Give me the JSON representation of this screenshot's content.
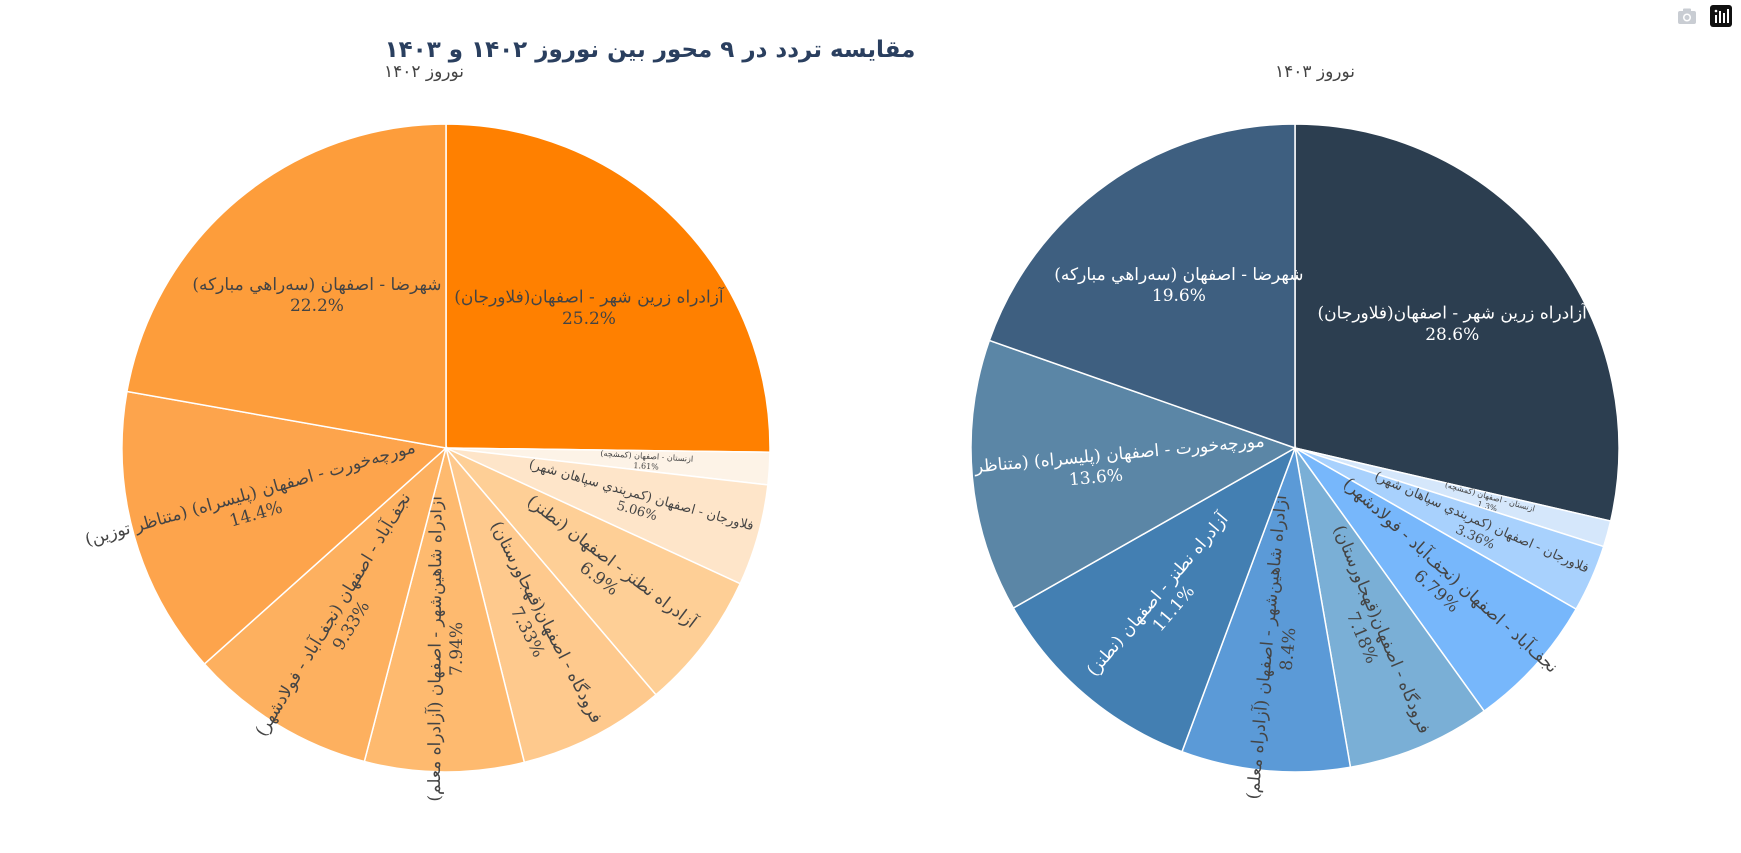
{
  "toolbar": {
    "camera_icon": "camera-icon",
    "plotly_icon": "plotly-logo-icon"
  },
  "chart_data": {
    "type": "pie",
    "title": "مقایسه تردد در ۹ محور بین نوروز ۱۴۰۲ و ۱۴۰۳",
    "subplots": [
      {
        "name": "نوروز ۱۴۰۲",
        "slices": [
          {
            "label": "آزادراه زرین شهر - اصفهان(فلاورجان)",
            "percent": 25.2,
            "text": "25.2%",
            "color": "#ff8000"
          },
          {
            "label": "ازنستان - اصفهان (کمشچه)",
            "percent": 1.61,
            "text": "1.61%",
            "color": "#fdf3e7"
          },
          {
            "label": "فلاورجان - اصفهان (کمربندي سپاهان شهر)",
            "percent": 5.06,
            "text": "5.06%",
            "color": "#fee5c9"
          },
          {
            "label": "آزادراه نطنز - اصفهان (نطنز)",
            "percent": 6.9,
            "text": "6.9%",
            "color": "#fecf96"
          },
          {
            "label": "فرودگاه - اصفهان(قهجاورستان)",
            "percent": 7.33,
            "text": "7.33%",
            "color": "#fec98d"
          },
          {
            "label": "آزادراه شاهین‌شهر - اصفهان (آزادراه معلم)",
            "percent": 7.94,
            "text": "7.94%",
            "color": "#feba6f"
          },
          {
            "label": "نجف‌آباد - اصفهان (نجف‌آباد - فولادشهر)",
            "percent": 9.33,
            "text": "9.33%",
            "color": "#fdb05f"
          },
          {
            "label": "مورچه‌خورت - اصفهان (پلیسراه) (متناظر توزین)",
            "percent": 14.4,
            "text": "14.4%",
            "color": "#fda44c"
          },
          {
            "label": "شهرضا - اصفهان (سه‌راهي مباركه)",
            "percent": 22.2,
            "text": "22.2%",
            "color": "#fd9d3b"
          }
        ]
      },
      {
        "name": "نوروز ۱۴۰۳",
        "slices": [
          {
            "label": "آزادراه زرین شهر - اصفهان(فلاورجان)",
            "percent": 28.6,
            "text": "28.6%",
            "color": "#2c3e50"
          },
          {
            "label": "ازنستان - اصفهان (کمشچه)",
            "percent": 1.3,
            "text": "1.3%",
            "color": "#d5e7fb"
          },
          {
            "label": "فلاورجان - اصفهان (کمربندي سپاهان شهر)",
            "percent": 3.36,
            "text": "3.36%",
            "color": "#a8d1fd"
          },
          {
            "label": "نجف‌آباد - اصفهان (نجف‌آباد - فولادشهر)",
            "percent": 6.79,
            "text": "6.79%",
            "color": "#77b7fb"
          },
          {
            "label": "فرودگاه - اصفهان(قهجاورستان)",
            "percent": 7.18,
            "text": "7.18%",
            "color": "#7aafd6"
          },
          {
            "label": "آزادراه شاهین‌شهر - اصفهان (آزادراه معلم)",
            "percent": 8.4,
            "text": "8.4%",
            "color": "#5b9ad7"
          },
          {
            "label": "آزادراه نطنز - اصفهان (نطنز)",
            "percent": 11.1,
            "text": "11.1%",
            "color": "#437fb2"
          },
          {
            "label": "مورچه‌خورت - اصفهان (پلیسراه) (متناظر توزین)",
            "percent": 13.6,
            "text": "13.6%",
            "color": "#5b86a6"
          },
          {
            "label": "شهرضا - اصفهان (سه‌راهي مباركه)",
            "percent": 19.6,
            "text": "19.6%",
            "color": "#3e5f80"
          }
        ]
      }
    ]
  }
}
